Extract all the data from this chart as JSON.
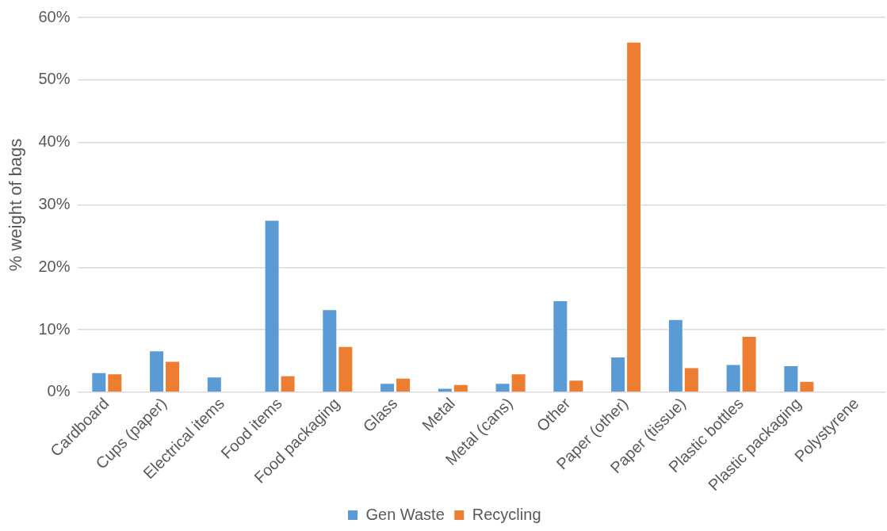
{
  "chart_data": {
    "type": "bar",
    "ylabel": "% weight of bags",
    "categories": [
      "Cardboard",
      "Cups (paper)",
      "Electrical items",
      "Food items",
      "Food packaging",
      "Glass",
      "Metal",
      "Metal (cans)",
      "Other",
      "Paper (other)",
      "Paper (tissue)",
      "Plastic bottles",
      "Plastic packaging",
      "Polystyrene"
    ],
    "series": [
      {
        "name": "Gen Waste",
        "color": "#5b9bd5",
        "values": [
          3.2,
          6.7,
          2.5,
          27.6,
          13.3,
          1.5,
          0.7,
          1.5,
          14.7,
          5.7,
          11.7,
          4.5,
          4.3,
          0
        ]
      },
      {
        "name": "Recycling",
        "color": "#ed7d31",
        "values": [
          3.0,
          5.0,
          0,
          2.7,
          7.4,
          2.3,
          1.3,
          3.0,
          2.0,
          56.1,
          4.0,
          9.0,
          1.8,
          0
        ]
      }
    ],
    "ylim": [
      0,
      60
    ],
    "yticks": [
      {
        "value": 0,
        "label": "0%"
      },
      {
        "value": 10,
        "label": "10%"
      },
      {
        "value": 20,
        "label": "20%"
      },
      {
        "value": 30,
        "label": "30%"
      },
      {
        "value": 40,
        "label": "40%"
      },
      {
        "value": 50,
        "label": "50%"
      },
      {
        "value": 60,
        "label": "60%"
      }
    ],
    "grid": "y",
    "legend": "bottom"
  }
}
